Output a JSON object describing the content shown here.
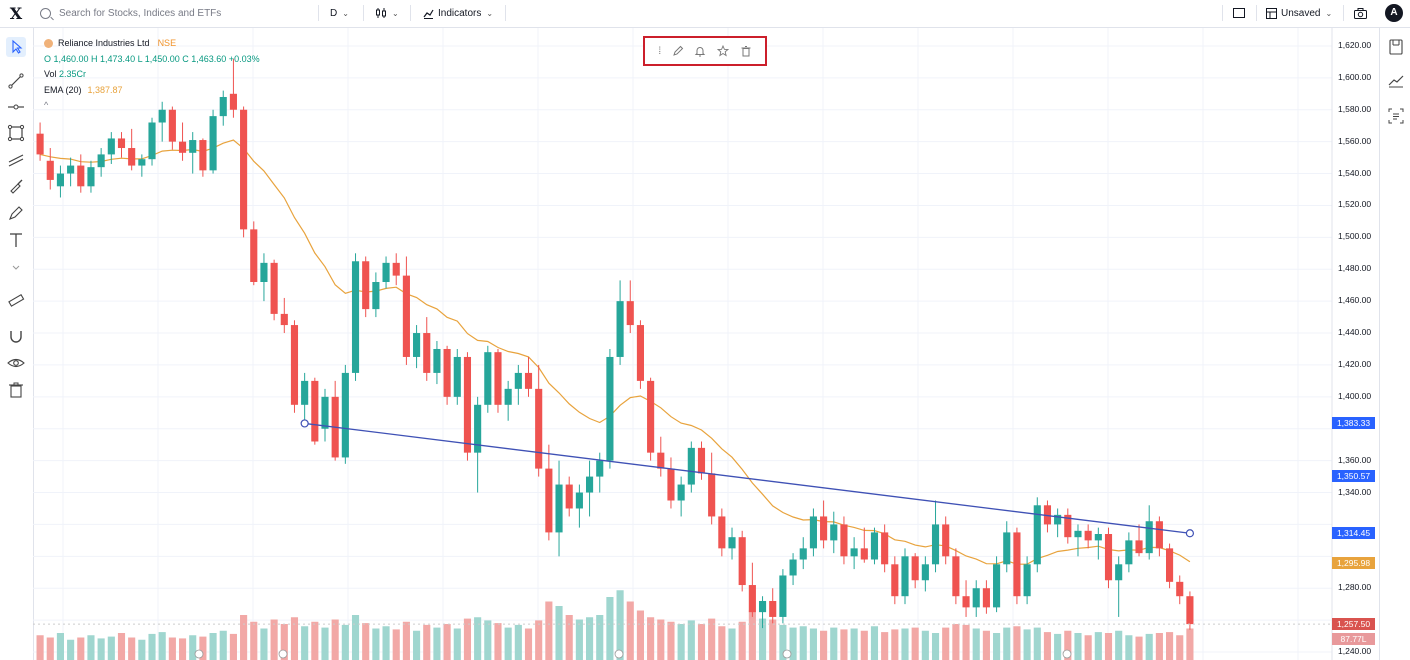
{
  "topbar": {
    "search_placeholder": "Search for Stocks, Indices and ETFs",
    "interval": "D",
    "indicators_label": "Indicators",
    "layout_status": "Unsaved",
    "avatar_initial": "A",
    "logo": "X"
  },
  "legend": {
    "symbol": "Reliance Industries Ltd",
    "exchange": "NSE",
    "ohlc": "O 1,460.00 H 1,473.40 L 1,450.00 C 1,463.60 +0.03%",
    "vol_label": "Vol",
    "vol_value": "2.35Cr",
    "ema_label": "EMA (20)",
    "ema_value": "1,387.87",
    "collapse": "^"
  },
  "floating_toolbar": {
    "handle": "⁞",
    "icons": [
      "drag-handle-icon",
      "pencil-icon",
      "bell-icon",
      "star-icon",
      "trash-icon"
    ]
  },
  "price_axis": {
    "ticks": [
      "1,620.00",
      "1,600.00",
      "1,580.00",
      "1,560.00",
      "1,540.00",
      "1,520.00",
      "1,500.00",
      "1,480.00",
      "1,460.00",
      "1,440.00",
      "1,420.00",
      "1,400.00",
      "1,360.00",
      "1,340.00",
      "1,280.00",
      "1,240.00"
    ],
    "tags": [
      {
        "value": "1,383.33",
        "color": "#2962ff"
      },
      {
        "value": "1,350.57",
        "color": "#2962ff"
      },
      {
        "value": "1,314.45",
        "color": "#2962ff"
      },
      {
        "value": "1,295.98",
        "color": "#e8a33d"
      },
      {
        "value": "1,257.50",
        "color": "#d9534f"
      },
      {
        "value": "87.77L",
        "color": "#e8999b"
      }
    ]
  },
  "colors": {
    "up": "#26a69a",
    "down": "#ef5350",
    "ema": "#e8a33d",
    "trendline": "#3f51b5",
    "highlight": "#cc1f2b"
  },
  "chart_data": {
    "type": "candlestick",
    "ylim": [
      1235,
      1630
    ],
    "ema_period": 20,
    "candles": [
      {
        "o": 1565,
        "h": 1572,
        "l": 1548,
        "c": 1552
      },
      {
        "o": 1548,
        "h": 1556,
        "l": 1530,
        "c": 1536
      },
      {
        "o": 1532,
        "h": 1545,
        "l": 1525,
        "c": 1540
      },
      {
        "o": 1540,
        "h": 1550,
        "l": 1532,
        "c": 1545
      },
      {
        "o": 1545,
        "h": 1552,
        "l": 1528,
        "c": 1532
      },
      {
        "o": 1532,
        "h": 1548,
        "l": 1528,
        "c": 1544
      },
      {
        "o": 1544,
        "h": 1556,
        "l": 1538,
        "c": 1552
      },
      {
        "o": 1552,
        "h": 1566,
        "l": 1546,
        "c": 1562
      },
      {
        "o": 1562,
        "h": 1566,
        "l": 1550,
        "c": 1556
      },
      {
        "o": 1556,
        "h": 1568,
        "l": 1542,
        "c": 1545
      },
      {
        "o": 1545,
        "h": 1552,
        "l": 1538,
        "c": 1549
      },
      {
        "o": 1549,
        "h": 1575,
        "l": 1545,
        "c": 1572
      },
      {
        "o": 1572,
        "h": 1585,
        "l": 1560,
        "c": 1580
      },
      {
        "o": 1580,
        "h": 1582,
        "l": 1555,
        "c": 1560
      },
      {
        "o": 1560,
        "h": 1572,
        "l": 1548,
        "c": 1553
      },
      {
        "o": 1553,
        "h": 1566,
        "l": 1540,
        "c": 1561
      },
      {
        "o": 1561,
        "h": 1562,
        "l": 1538,
        "c": 1542
      },
      {
        "o": 1542,
        "h": 1580,
        "l": 1540,
        "c": 1576
      },
      {
        "o": 1576,
        "h": 1592,
        "l": 1570,
        "c": 1588
      },
      {
        "o": 1590,
        "h": 1612,
        "l": 1575,
        "c": 1580
      },
      {
        "o": 1580,
        "h": 1582,
        "l": 1500,
        "c": 1505
      },
      {
        "o": 1505,
        "h": 1510,
        "l": 1470,
        "c": 1472
      },
      {
        "o": 1472,
        "h": 1490,
        "l": 1460,
        "c": 1484
      },
      {
        "o": 1484,
        "h": 1486,
        "l": 1448,
        "c": 1452
      },
      {
        "o": 1452,
        "h": 1462,
        "l": 1440,
        "c": 1445
      },
      {
        "o": 1445,
        "h": 1448,
        "l": 1390,
        "c": 1395
      },
      {
        "o": 1395,
        "h": 1415,
        "l": 1382,
        "c": 1410
      },
      {
        "o": 1410,
        "h": 1412,
        "l": 1370,
        "c": 1372
      },
      {
        "o": 1380,
        "h": 1405,
        "l": 1372,
        "c": 1400
      },
      {
        "o": 1400,
        "h": 1410,
        "l": 1360,
        "c": 1362
      },
      {
        "o": 1362,
        "h": 1420,
        "l": 1358,
        "c": 1415
      },
      {
        "o": 1415,
        "h": 1490,
        "l": 1410,
        "c": 1485
      },
      {
        "o": 1485,
        "h": 1488,
        "l": 1450,
        "c": 1455
      },
      {
        "o": 1455,
        "h": 1478,
        "l": 1450,
        "c": 1472
      },
      {
        "o": 1472,
        "h": 1488,
        "l": 1468,
        "c": 1484
      },
      {
        "o": 1484,
        "h": 1490,
        "l": 1470,
        "c": 1476
      },
      {
        "o": 1476,
        "h": 1488,
        "l": 1420,
        "c": 1425
      },
      {
        "o": 1425,
        "h": 1445,
        "l": 1418,
        "c": 1440
      },
      {
        "o": 1440,
        "h": 1450,
        "l": 1410,
        "c": 1415
      },
      {
        "o": 1415,
        "h": 1435,
        "l": 1408,
        "c": 1430
      },
      {
        "o": 1430,
        "h": 1432,
        "l": 1395,
        "c": 1400
      },
      {
        "o": 1400,
        "h": 1430,
        "l": 1395,
        "c": 1425
      },
      {
        "o": 1425,
        "h": 1428,
        "l": 1360,
        "c": 1365
      },
      {
        "o": 1365,
        "h": 1400,
        "l": 1340,
        "c": 1395
      },
      {
        "o": 1395,
        "h": 1432,
        "l": 1390,
        "c": 1428
      },
      {
        "o": 1428,
        "h": 1430,
        "l": 1390,
        "c": 1395
      },
      {
        "o": 1395,
        "h": 1410,
        "l": 1385,
        "c": 1405
      },
      {
        "o": 1405,
        "h": 1420,
        "l": 1395,
        "c": 1415
      },
      {
        "o": 1415,
        "h": 1425,
        "l": 1400,
        "c": 1405
      },
      {
        "o": 1405,
        "h": 1420,
        "l": 1350,
        "c": 1355
      },
      {
        "o": 1355,
        "h": 1370,
        "l": 1310,
        "c": 1315
      },
      {
        "o": 1315,
        "h": 1360,
        "l": 1300,
        "c": 1345
      },
      {
        "o": 1345,
        "h": 1350,
        "l": 1325,
        "c": 1330
      },
      {
        "o": 1330,
        "h": 1345,
        "l": 1318,
        "c": 1340
      },
      {
        "o": 1340,
        "h": 1360,
        "l": 1325,
        "c": 1350
      },
      {
        "o": 1350,
        "h": 1365,
        "l": 1340,
        "c": 1360
      },
      {
        "o": 1360,
        "h": 1430,
        "l": 1355,
        "c": 1425
      },
      {
        "o": 1425,
        "h": 1473,
        "l": 1420,
        "c": 1460
      },
      {
        "o": 1460,
        "h": 1473,
        "l": 1440,
        "c": 1445
      },
      {
        "o": 1445,
        "h": 1448,
        "l": 1405,
        "c": 1410
      },
      {
        "o": 1410,
        "h": 1412,
        "l": 1360,
        "c": 1365
      },
      {
        "o": 1365,
        "h": 1375,
        "l": 1350,
        "c": 1355
      },
      {
        "o": 1355,
        "h": 1362,
        "l": 1330,
        "c": 1335
      },
      {
        "o": 1335,
        "h": 1350,
        "l": 1325,
        "c": 1345
      },
      {
        "o": 1345,
        "h": 1372,
        "l": 1340,
        "c": 1368
      },
      {
        "o": 1368,
        "h": 1372,
        "l": 1348,
        "c": 1352
      },
      {
        "o": 1352,
        "h": 1365,
        "l": 1320,
        "c": 1325
      },
      {
        "o": 1325,
        "h": 1330,
        "l": 1300,
        "c": 1305
      },
      {
        "o": 1305,
        "h": 1318,
        "l": 1298,
        "c": 1312
      },
      {
        "o": 1312,
        "h": 1316,
        "l": 1278,
        "c": 1282
      },
      {
        "o": 1282,
        "h": 1296,
        "l": 1262,
        "c": 1265
      },
      {
        "o": 1265,
        "h": 1275,
        "l": 1255,
        "c": 1272
      },
      {
        "o": 1272,
        "h": 1280,
        "l": 1258,
        "c": 1262
      },
      {
        "o": 1262,
        "h": 1292,
        "l": 1258,
        "c": 1288
      },
      {
        "o": 1288,
        "h": 1302,
        "l": 1282,
        "c": 1298
      },
      {
        "o": 1298,
        "h": 1312,
        "l": 1292,
        "c": 1305
      },
      {
        "o": 1305,
        "h": 1330,
        "l": 1300,
        "c": 1325
      },
      {
        "o": 1325,
        "h": 1335,
        "l": 1305,
        "c": 1310
      },
      {
        "o": 1310,
        "h": 1328,
        "l": 1302,
        "c": 1320
      },
      {
        "o": 1320,
        "h": 1325,
        "l": 1295,
        "c": 1300
      },
      {
        "o": 1300,
        "h": 1312,
        "l": 1292,
        "c": 1305
      },
      {
        "o": 1305,
        "h": 1318,
        "l": 1296,
        "c": 1298
      },
      {
        "o": 1298,
        "h": 1318,
        "l": 1295,
        "c": 1315
      },
      {
        "o": 1315,
        "h": 1320,
        "l": 1290,
        "c": 1295
      },
      {
        "o": 1295,
        "h": 1300,
        "l": 1270,
        "c": 1275
      },
      {
        "o": 1275,
        "h": 1305,
        "l": 1270,
        "c": 1300
      },
      {
        "o": 1300,
        "h": 1302,
        "l": 1280,
        "c": 1285
      },
      {
        "o": 1285,
        "h": 1300,
        "l": 1278,
        "c": 1295
      },
      {
        "o": 1295,
        "h": 1335,
        "l": 1290,
        "c": 1320
      },
      {
        "o": 1320,
        "h": 1325,
        "l": 1295,
        "c": 1300
      },
      {
        "o": 1300,
        "h": 1305,
        "l": 1270,
        "c": 1275
      },
      {
        "o": 1275,
        "h": 1285,
        "l": 1262,
        "c": 1268
      },
      {
        "o": 1268,
        "h": 1285,
        "l": 1262,
        "c": 1280
      },
      {
        "o": 1280,
        "h": 1285,
        "l": 1264,
        "c": 1268
      },
      {
        "o": 1268,
        "h": 1300,
        "l": 1265,
        "c": 1295
      },
      {
        "o": 1295,
        "h": 1322,
        "l": 1290,
        "c": 1315
      },
      {
        "o": 1315,
        "h": 1318,
        "l": 1270,
        "c": 1275
      },
      {
        "o": 1275,
        "h": 1300,
        "l": 1270,
        "c": 1295
      },
      {
        "o": 1295,
        "h": 1337,
        "l": 1290,
        "c": 1332
      },
      {
        "o": 1332,
        "h": 1335,
        "l": 1315,
        "c": 1320
      },
      {
        "o": 1320,
        "h": 1330,
        "l": 1312,
        "c": 1326
      },
      {
        "o": 1326,
        "h": 1330,
        "l": 1308,
        "c": 1312
      },
      {
        "o": 1312,
        "h": 1320,
        "l": 1300,
        "c": 1316
      },
      {
        "o": 1316,
        "h": 1320,
        "l": 1305,
        "c": 1310
      },
      {
        "o": 1310,
        "h": 1318,
        "l": 1298,
        "c": 1314
      },
      {
        "o": 1314,
        "h": 1318,
        "l": 1280,
        "c": 1285
      },
      {
        "o": 1285,
        "h": 1300,
        "l": 1262,
        "c": 1295
      },
      {
        "o": 1295,
        "h": 1315,
        "l": 1290,
        "c": 1310
      },
      {
        "o": 1310,
        "h": 1320,
        "l": 1300,
        "c": 1302
      },
      {
        "o": 1302,
        "h": 1332,
        "l": 1298,
        "c": 1322
      },
      {
        "o": 1322,
        "h": 1325,
        "l": 1300,
        "c": 1305
      },
      {
        "o": 1305,
        "h": 1308,
        "l": 1280,
        "c": 1284
      },
      {
        "o": 1284,
        "h": 1288,
        "l": 1270,
        "c": 1275
      },
      {
        "o": 1275,
        "h": 1278,
        "l": 1254,
        "c": 1257.5
      }
    ],
    "volume_ratio": [
      0.55,
      0.5,
      0.6,
      0.45,
      0.5,
      0.55,
      0.48,
      0.52,
      0.6,
      0.5,
      0.45,
      0.58,
      0.62,
      0.5,
      0.48,
      0.55,
      0.52,
      0.6,
      0.65,
      0.58,
      1.0,
      0.85,
      0.7,
      0.9,
      0.8,
      0.95,
      0.75,
      0.85,
      0.72,
      0.9,
      0.78,
      1.0,
      0.82,
      0.7,
      0.75,
      0.68,
      0.85,
      0.65,
      0.78,
      0.72,
      0.8,
      0.7,
      0.92,
      0.95,
      0.88,
      0.82,
      0.72,
      0.78,
      0.7,
      0.88,
      1.3,
      1.2,
      1.0,
      0.9,
      0.95,
      1.0,
      1.4,
      1.55,
      1.3,
      1.1,
      0.95,
      0.9,
      0.85,
      0.8,
      0.88,
      0.8,
      0.92,
      0.75,
      0.7,
      0.85,
      1.1,
      0.92,
      0.9,
      0.78,
      0.72,
      0.75,
      0.7,
      0.65,
      0.72,
      0.68,
      0.7,
      0.65,
      0.75,
      0.62,
      0.68,
      0.7,
      0.72,
      0.65,
      0.6,
      0.72,
      0.8,
      0.78,
      0.7,
      0.65,
      0.6,
      0.72,
      0.75,
      0.68,
      0.72,
      0.62,
      0.58,
      0.65,
      0.6,
      0.55,
      0.62,
      0.6,
      0.65,
      0.55,
      0.52,
      0.58,
      0.6,
      0.62,
      0.55,
      0.7,
      0.6
    ],
    "trendline": {
      "from": {
        "index": 26,
        "price": 1383.33
      },
      "to": {
        "index": 113,
        "price": 1314.45
      }
    },
    "trendline_marker": {
      "index": 70,
      "price": 1350.57
    }
  }
}
